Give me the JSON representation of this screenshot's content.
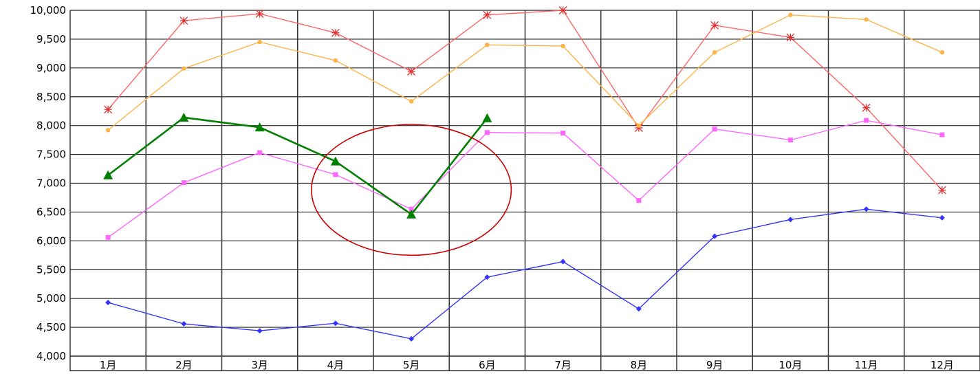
{
  "chart_data": {
    "type": "line",
    "title": "",
    "xlabel": "",
    "ylabel": "",
    "categories": [
      "1月",
      "2月",
      "3月",
      "4月",
      "5月",
      "6月",
      "7月",
      "8月",
      "9月",
      "10月",
      "11月",
      "12月"
    ],
    "ylim": [
      4000,
      10000
    ],
    "yticks": [
      4000,
      4500,
      5000,
      5500,
      6000,
      6500,
      7000,
      7500,
      8000,
      8500,
      9000,
      9500,
      10000
    ],
    "ytick_labels": [
      "4,000",
      "4,500",
      "5,000",
      "5,500",
      "6,000",
      "6,500",
      "7,000",
      "7,500",
      "8,000",
      "8,500",
      "9,000",
      "9,500",
      "10,000"
    ],
    "grid": true,
    "legend": "none",
    "series": [
      {
        "color": "#ff6666",
        "marker": "asterisk",
        "values": [
          8280,
          9820,
          9940,
          9610,
          8940,
          9920,
          10000,
          7960,
          9740,
          9530,
          8310,
          6880
        ]
      },
      {
        "color": "#ffb347",
        "marker": "dot",
        "values": [
          7920,
          8990,
          9450,
          9130,
          8420,
          9400,
          9380,
          8000,
          9270,
          9920,
          9840,
          9270
        ]
      },
      {
        "color": "#ff66ff",
        "marker": "square",
        "values": [
          6060,
          7010,
          7530,
          7150,
          6550,
          7880,
          7870,
          6700,
          7940,
          7750,
          8090,
          7840
        ]
      },
      {
        "color": "#008000",
        "marker": "triangle",
        "values": [
          7140,
          8140,
          7970,
          7380,
          6460,
          8130,
          null,
          null,
          null,
          null,
          null,
          null
        ]
      },
      {
        "color": "#3333ff",
        "marker": "diamond",
        "values": [
          4930,
          4560,
          4440,
          4570,
          4300,
          5370,
          5640,
          4820,
          6080,
          6370,
          6550,
          6400
        ]
      }
    ],
    "annotation": {
      "type": "ellipse",
      "color": "#cc0000",
      "around_categories": [
        "4月",
        "6月"
      ],
      "y_range": [
        5750,
        8020
      ]
    }
  }
}
